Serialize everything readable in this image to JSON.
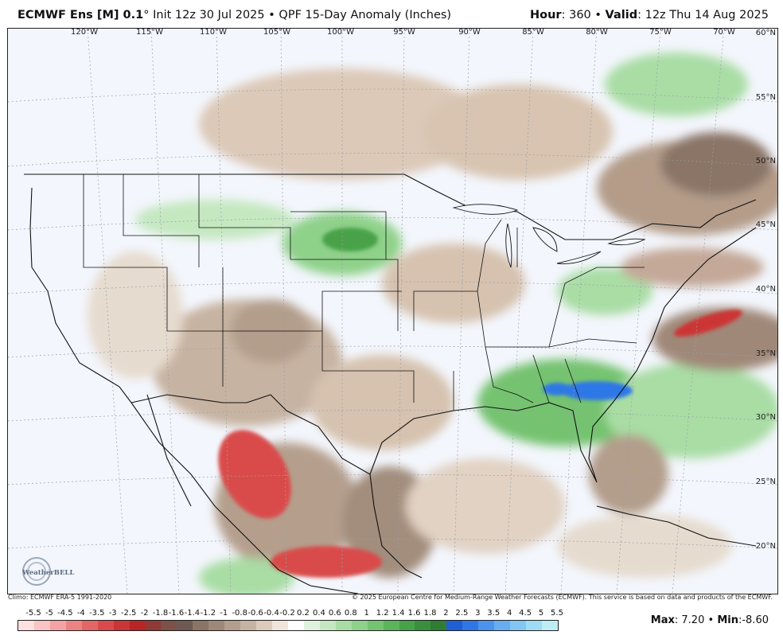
{
  "header": {
    "model": "ECMWF Ens [M] 0.1",
    "degree": "°",
    "init": "Init 12z 30 Jul 2025",
    "bullet": "•",
    "product": "QPF 15-Day Anomaly (Inches)",
    "hour_label": "Hour",
    "hour_value": ": 360",
    "valid_label": "Valid",
    "valid_value": ": 12z Thu 14 Aug 2025"
  },
  "map": {
    "lon_labels": [
      "120°W",
      "115°W",
      "110°W",
      "105°W",
      "100°W",
      "95°W",
      "90°W",
      "85°W",
      "80°W",
      "75°W",
      "70°W"
    ],
    "lat_labels": [
      "60°N",
      "55°N",
      "50°N",
      "45°N",
      "40°N",
      "35°N",
      "30°N",
      "25°N",
      "20°N"
    ],
    "logo_text": "WeatherBELL"
  },
  "footer": {
    "climo": "Climo: ECMWF ERA-5 1991-2020",
    "copyright": "© 2025 European Centre for Medium-Range Weather Forecasts (ECMWF). This service is based on data and products of the ECMWF."
  },
  "legend": {
    "labels": [
      "-5.5",
      "-5",
      "-4.5",
      "-4",
      "-3.5",
      "-3",
      "-2.5",
      "-2",
      "-1.8",
      "-1.6",
      "-1.4",
      "-1.2",
      "-1",
      "-0.8",
      "-0.6",
      "-0.4",
      "-0.2",
      "0.2",
      "0.4",
      "0.6",
      "0.8",
      "1",
      "1.2",
      "1.4",
      "1.6",
      "1.8",
      "2",
      "2.5",
      "3",
      "3.5",
      "4",
      "4.5",
      "5",
      "5.5"
    ],
    "colors": [
      "#fde0e0",
      "#f9c4c4",
      "#f3a3a3",
      "#ec8383",
      "#e46666",
      "#d94b4b",
      "#cc3535",
      "#b92525",
      "#8f3a34",
      "#7c5149",
      "#6e5a52",
      "#8a7466",
      "#9e8878",
      "#b39d8b",
      "#c7b3a1",
      "#dccbbb",
      "#efe5da",
      "#ffffff",
      "#dff2dc",
      "#c4e8c0",
      "#a9dda4",
      "#8ed189",
      "#74c370",
      "#5cb45a",
      "#48a24a",
      "#3a8f3e",
      "#2f7d33",
      "#1f5fd6",
      "#2f77e6",
      "#4a94ee",
      "#66aef1",
      "#82c6f3",
      "#9fdbf5",
      "#bdeef8"
    ]
  },
  "stats": {
    "max_label": "Max",
    "max_value": ": 7.20",
    "sep": "•",
    "min_label": "Min",
    "min_value": ":-8.60"
  }
}
